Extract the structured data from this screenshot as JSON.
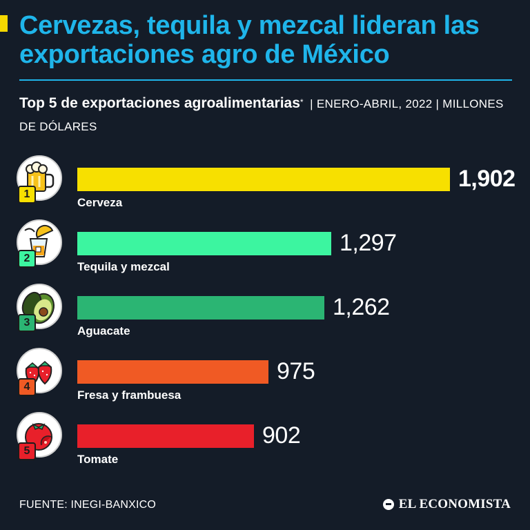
{
  "header": {
    "title": "Cervezas, tequila y mezcal lideran las exportaciones agro de México",
    "subtitle_bold": "Top 5 de exportaciones agroalimentarias",
    "subtitle_asterisk": "*",
    "subtitle_light": "| ENERO-ABRIL, 2022 | MILLONES DE DÓLARES"
  },
  "colors": {
    "background": "#141c28",
    "title": "#1fb5ea",
    "accent": "#f5d800"
  },
  "chart_data": {
    "type": "bar",
    "orientation": "horizontal",
    "categories": [
      "Cerveza",
      "Tequila y mezcal",
      "Aguacate",
      "Fresa y frambuesa",
      "Tomate"
    ],
    "values": [
      1902,
      1297,
      1262,
      975,
      902
    ],
    "value_labels": [
      "1,902",
      "1,297",
      "1,262",
      "975",
      "902"
    ],
    "ranks": [
      "1",
      "2",
      "3",
      "4",
      "5"
    ],
    "icons": [
      "beer-mug-icon",
      "tequila-shot-icon",
      "avocado-icon",
      "strawberry-icon",
      "tomato-icon"
    ],
    "bar_colors": [
      "#f7e000",
      "#3cf5a0",
      "#2bb573",
      "#f05a24",
      "#e8202a"
    ],
    "rank_colors": [
      "#f7e000",
      "#3cf5a0",
      "#2bb573",
      "#f05a24",
      "#e8202a"
    ],
    "xlim": [
      0,
      1902
    ],
    "grid": false
  },
  "footer": {
    "source": "FUENTE: INEGI-BANXICO",
    "logo": "EL ECONOMISTA"
  }
}
